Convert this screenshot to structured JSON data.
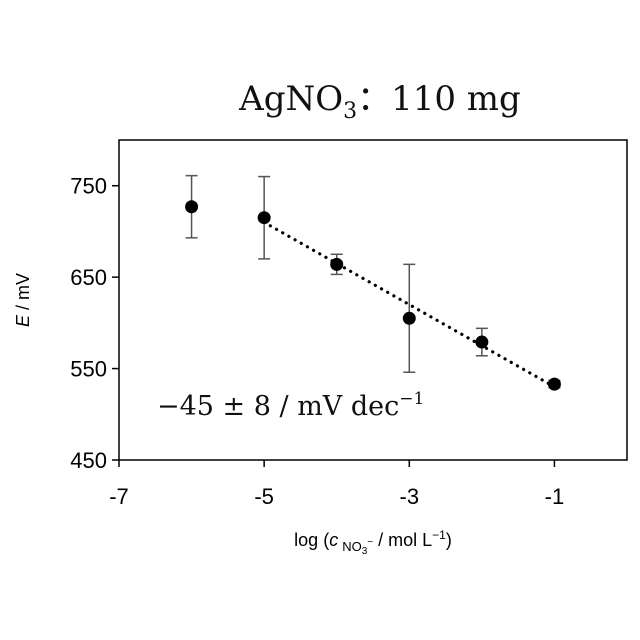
{
  "chart_data": {
    "type": "scatter",
    "title_main": "AgNO",
    "title_sub": "3",
    "title_rest": "：110 mg",
    "ylabel_italic": "E",
    "ylabel_rest": " / mV",
    "xlabel_pre": "log (",
    "xlabel_c": "c",
    "xlabel_species": "NO",
    "xlabel_species_sub": "3",
    "xlabel_species_charge": "−",
    "xlabel_post": " / mol L",
    "xlabel_exp": "−1",
    "xlabel_close": ")",
    "annotation_main": "−45 ± 8 / mV dec",
    "annotation_exp": "−1",
    "xlim": [
      -7,
      0
    ],
    "ylim": [
      450,
      800
    ],
    "x_ticks": [
      -7,
      -5,
      -3,
      -1
    ],
    "x_tick_labels": [
      "-7",
      "-5",
      "-3",
      "-1"
    ],
    "y_ticks": [
      450,
      550,
      650,
      750
    ],
    "y_tick_labels": [
      "450",
      "550",
      "650",
      "750"
    ],
    "grid": false,
    "points": [
      {
        "x": -6,
        "y": 727,
        "err": 34
      },
      {
        "x": -5,
        "y": 715,
        "err": 45
      },
      {
        "x": -4,
        "y": 664,
        "err": 11
      },
      {
        "x": -3,
        "y": 605,
        "err": 59
      },
      {
        "x": -2,
        "y": 579,
        "err": 15
      },
      {
        "x": -1,
        "y": 533,
        "err": 4
      }
    ],
    "fit_line": {
      "x": [
        -5,
        -1
      ],
      "y": [
        710,
        530
      ],
      "style": "dotted"
    },
    "colors": {
      "marker": "#000000",
      "errorbar": "#555555",
      "fit": "#000000"
    }
  }
}
